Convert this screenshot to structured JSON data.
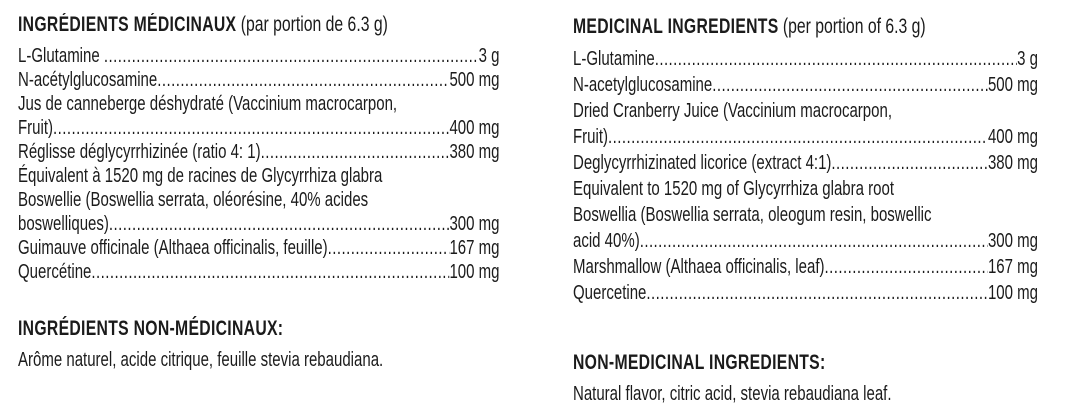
{
  "colors": {
    "text": "#1b1b1b",
    "background": "#ffffff"
  },
  "panel": {
    "french": {
      "heading": "INGRÉDIENTS MÉDICINAUX",
      "heading_note": "(par portion de 6.3 g)",
      "lines": [
        {
          "text": "L-Glutamine ",
          "amount": "3 g"
        },
        {
          "text": "N-acétylglucosamine",
          "amount": "500 mg"
        },
        {
          "text": "Jus de canneberge déshydraté (Vaccinium macrocarpon,",
          "amount": ""
        },
        {
          "text": "Fruit)",
          "amount": "400 mg"
        },
        {
          "text": "Réglisse déglycyrrhizinée (ratio 4: 1)",
          "amount": "380 mg"
        },
        {
          "text": "Équivalent à 1520 mg de racines de Glycyrrhiza glabra",
          "amount": ""
        },
        {
          "text": "Boswellie (Boswellia serrata, oléorésine, 40% acides",
          "amount": ""
        },
        {
          "text": "boswelliques)",
          "amount": "300 mg"
        },
        {
          "text": "Guimauve officinale (Althaea officinalis, feuille)",
          "amount": "167 mg"
        },
        {
          "text": "Quercétine",
          "amount": "100 mg"
        }
      ],
      "non_medicinal_heading": "INGRÉDIENTS NON-MÉDICINAUX:",
      "non_medicinal_text": "Arôme naturel, acide citrique, feuille stevia rebaudiana."
    },
    "english": {
      "heading": "MEDICINAL INGREDIENTS",
      "heading_note": "(per portion of 6.3 g)",
      "lines": [
        {
          "text": "L-Glutamine",
          "amount": "3 g"
        },
        {
          "text": "N-acetylglucosamine",
          "amount": "500 mg"
        },
        {
          "text": "Dried Cranberry Juice (Vaccinium macrocarpon,",
          "amount": ""
        },
        {
          "text": "Fruit)",
          "amount": "400 mg"
        },
        {
          "text": "Deglycyrrhizinated licorice (extract 4:1)",
          "amount": "380 mg"
        },
        {
          "text": "Equivalent to 1520 mg of Glycyrrhiza glabra root",
          "amount": ""
        },
        {
          "text": "Boswellia (Boswellia serrata, oleogum resin, boswellic",
          "amount": ""
        },
        {
          "text": "acid 40%)",
          "amount": "300 mg"
        },
        {
          "text": "Marshmallow (Althaea officinalis, leaf)",
          "amount": "167 mg"
        },
        {
          "text": "Quercetine",
          "amount": "100 mg"
        }
      ],
      "non_medicinal_heading": "NON-MEDICINAL INGREDIENTS:",
      "non_medicinal_text": "Natural flavor, citric acid, stevia rebaudiana leaf."
    }
  }
}
